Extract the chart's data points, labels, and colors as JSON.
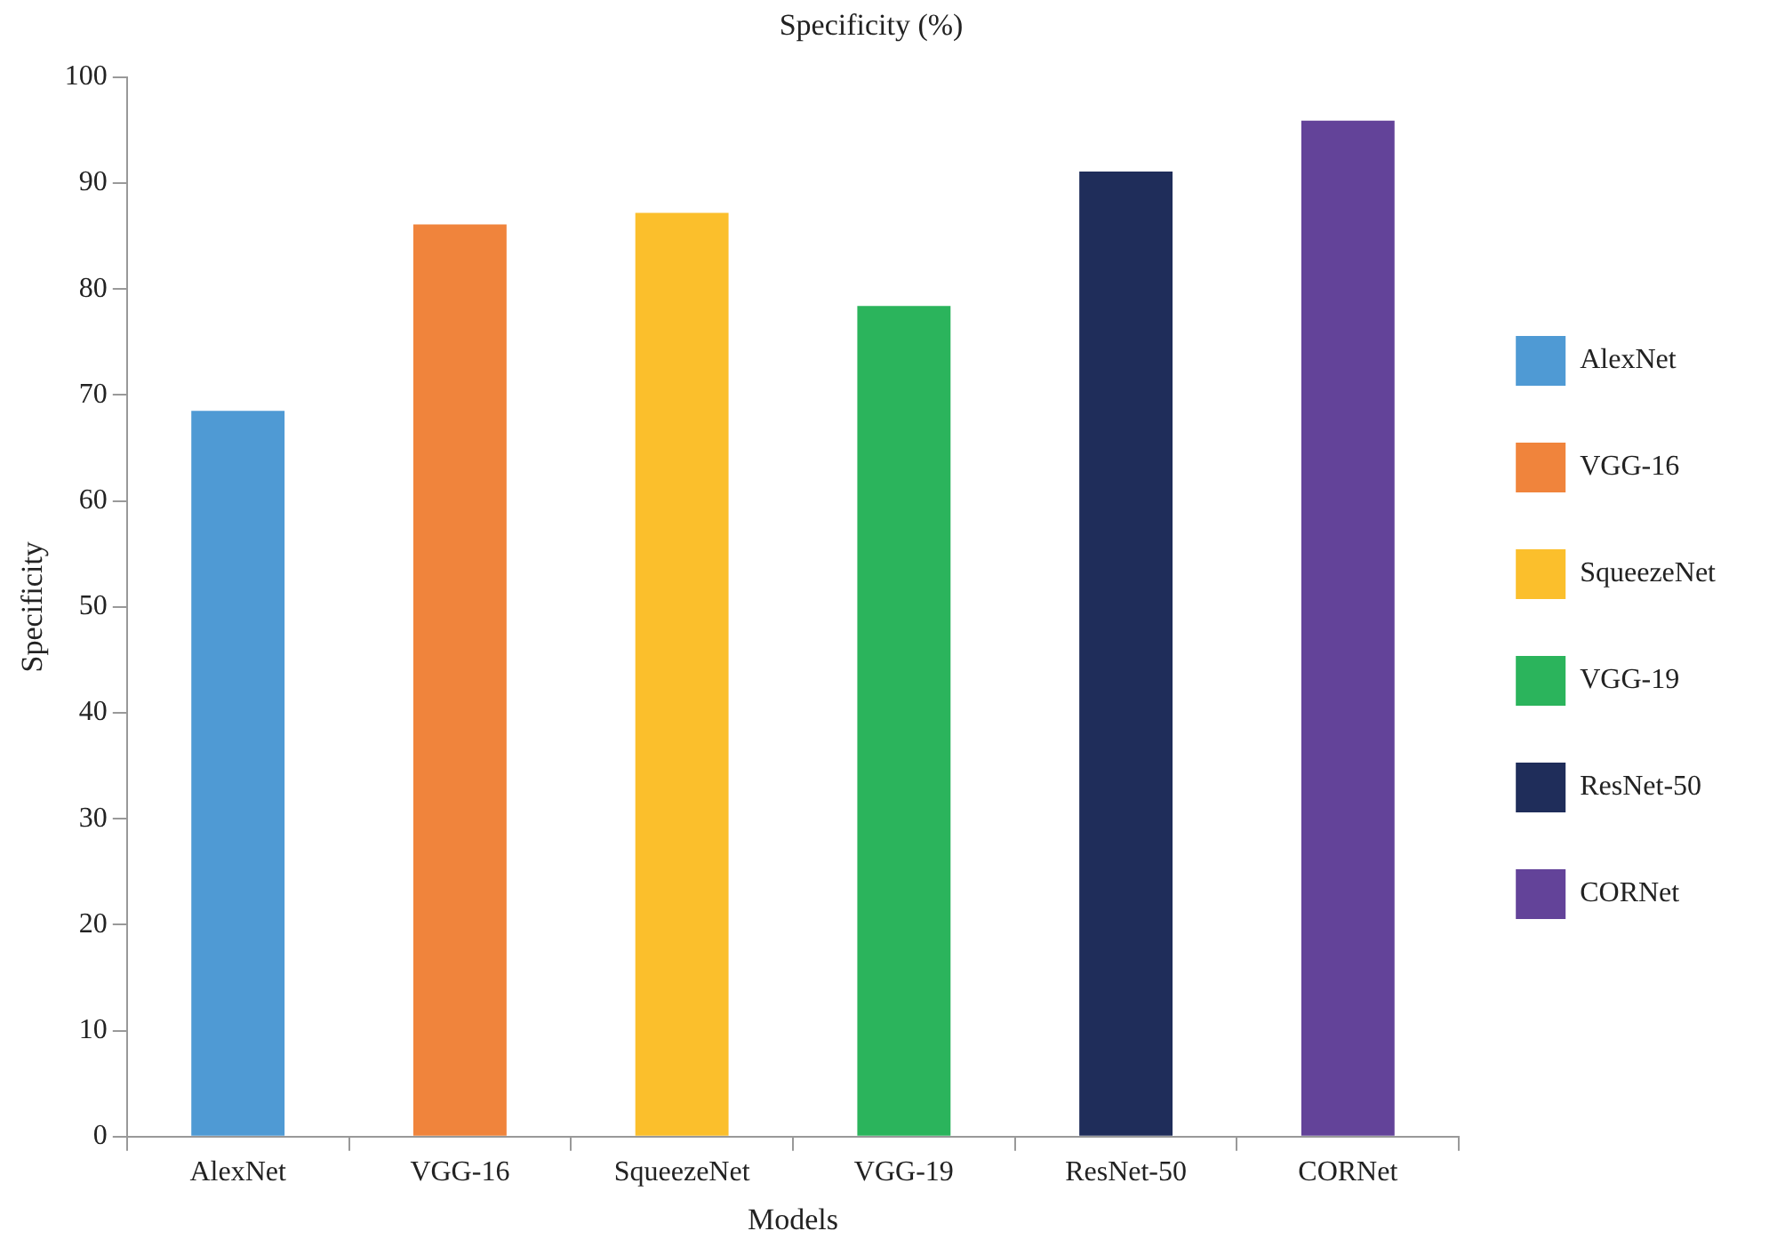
{
  "chart_data": {
    "type": "bar",
    "title": "Specificity (%)",
    "xlabel": "Models",
    "ylabel": "Specificity",
    "categories": [
      "AlexNet",
      "VGG-16",
      "SqueezeNet",
      "VGG-19",
      "ResNet-50",
      "CORNet"
    ],
    "series": [
      {
        "name": "AlexNet",
        "color": "#4f9ad4",
        "values": [
          68.5,
          null,
          null,
          null,
          null,
          null
        ]
      },
      {
        "name": "VGG-16",
        "color": "#f0843c",
        "values": [
          null,
          86.1,
          null,
          null,
          null,
          null
        ]
      },
      {
        "name": "SqueezeNet",
        "color": "#fbbf2c",
        "values": [
          null,
          null,
          87.2,
          null,
          null,
          null
        ]
      },
      {
        "name": "VGG-19",
        "color": "#2bb45c",
        "values": [
          null,
          null,
          null,
          78.4,
          null,
          null
        ]
      },
      {
        "name": "ResNet-50",
        "color": "#1f2d5a",
        "values": [
          null,
          null,
          null,
          null,
          91.1,
          null
        ]
      },
      {
        "name": "CORNet",
        "color": "#634399",
        "values": [
          null,
          null,
          null,
          null,
          null,
          95.9
        ]
      }
    ],
    "ylim": [
      0,
      100
    ],
    "yticks": [
      0,
      10,
      20,
      30,
      40,
      50,
      60,
      70,
      80,
      90,
      100
    ],
    "grid": false,
    "legend": "right"
  }
}
